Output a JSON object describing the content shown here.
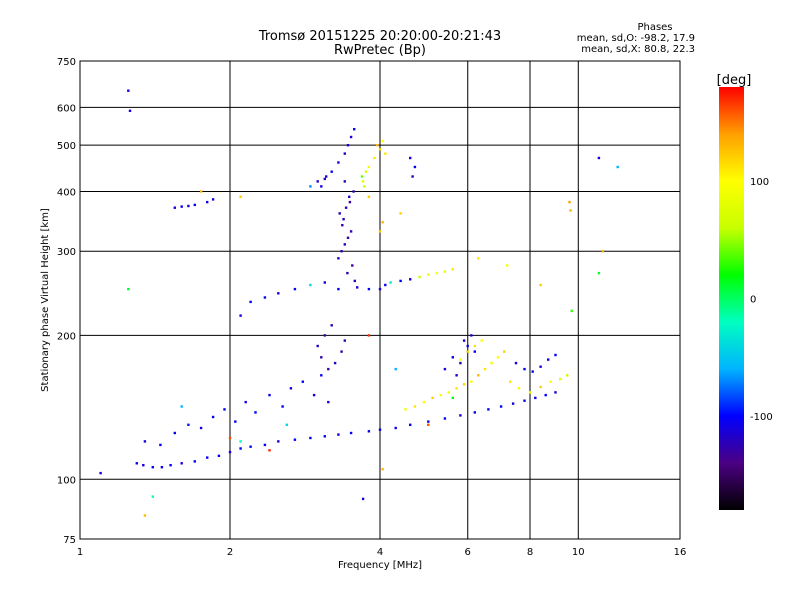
{
  "chart_data": {
    "type": "scatter",
    "title": "Tromsø 20151225 20:20:00-20:21:43",
    "subtitle": "RwPretec (Bp)",
    "xlabel": "Frequency [MHz]",
    "ylabel": "Stationary phase Virtual Height [km]",
    "x_scale": "log",
    "y_scale": "log",
    "xlim": [
      1,
      16
    ],
    "ylim": [
      75,
      750
    ],
    "x_ticks": [
      "1",
      "2",
      "4",
      "6",
      "8",
      "10",
      "16"
    ],
    "x_tick_values": [
      1,
      2,
      4,
      6,
      8,
      10,
      16
    ],
    "y_ticks": [
      "75",
      "100",
      "200",
      "300",
      "400",
      "500",
      "600",
      "750"
    ],
    "y_tick_values": [
      75,
      100,
      200,
      300,
      400,
      500,
      600,
      750
    ],
    "grid": true,
    "stats": {
      "header": "Phases",
      "o_line": "mean, sd,O: -98.2, 17.9",
      "x_line": "mean, sd,X: 80.8, 22.3"
    },
    "colorbar": {
      "label": "[deg]",
      "min": -180,
      "max": 180,
      "ticks": [
        "100",
        "0",
        "-100"
      ],
      "tick_values": [
        100,
        0,
        -100
      ],
      "colors": [
        "#000000",
        "#4b0082",
        "#0000ff",
        "#00b4ff",
        "#00ffc0",
        "#00ff00",
        "#c8ff00",
        "#ffff00",
        "#ffa000",
        "#ff0000"
      ]
    },
    "series": [
      {
        "values_note": "",
        "points": [
          [
            1.3,
            108,
            -105
          ],
          [
            1.34,
            107,
            -110
          ],
          [
            1.4,
            106,
            -100
          ],
          [
            1.46,
            106,
            -105
          ],
          [
            1.52,
            107,
            -100
          ],
          [
            1.6,
            108,
            -110
          ],
          [
            1.7,
            109,
            -100
          ],
          [
            1.8,
            111,
            -105
          ],
          [
            1.9,
            112,
            -100
          ],
          [
            2.0,
            114,
            -110
          ],
          [
            2.1,
            116,
            -100
          ],
          [
            2.2,
            117,
            -105
          ],
          [
            2.35,
            118,
            -100
          ],
          [
            2.5,
            120,
            -110
          ],
          [
            2.7,
            121,
            -100
          ],
          [
            2.9,
            122,
            -105
          ],
          [
            3.1,
            123,
            -100
          ],
          [
            3.3,
            124,
            -110
          ],
          [
            3.5,
            125,
            -100
          ],
          [
            3.8,
            126,
            -105
          ],
          [
            4.0,
            127,
            -100
          ],
          [
            4.3,
            128,
            -110
          ],
          [
            4.6,
            130,
            -100
          ],
          [
            5.0,
            132,
            -105
          ],
          [
            5.4,
            134,
            -100
          ],
          [
            5.8,
            136,
            -110
          ],
          [
            6.2,
            138,
            -100
          ],
          [
            6.6,
            140,
            -105
          ],
          [
            7.0,
            142,
            -100
          ],
          [
            7.4,
            144,
            -110
          ],
          [
            7.8,
            146,
            -100
          ],
          [
            8.2,
            148,
            -105
          ],
          [
            8.6,
            150,
            -100
          ],
          [
            9.0,
            152,
            -110
          ],
          [
            1.35,
            120,
            -110
          ],
          [
            1.45,
            118,
            -100
          ],
          [
            1.55,
            125,
            -105
          ],
          [
            1.65,
            130,
            -95
          ],
          [
            1.75,
            128,
            -110
          ],
          [
            1.85,
            135,
            -100
          ],
          [
            1.95,
            140,
            -105
          ],
          [
            2.05,
            132,
            -100
          ],
          [
            2.15,
            145,
            -110
          ],
          [
            2.25,
            138,
            -100
          ],
          [
            2.4,
            150,
            -105
          ],
          [
            2.55,
            142,
            -100
          ],
          [
            2.65,
            155,
            -110
          ],
          [
            2.8,
            160,
            -100
          ],
          [
            2.95,
            150,
            -105
          ],
          [
            3.05,
            165,
            -100
          ],
          [
            3.15,
            145,
            -110
          ],
          [
            1.6,
            142,
            -60
          ],
          [
            2.6,
            130,
            -40
          ],
          [
            2.0,
            122,
            160
          ],
          [
            3.0,
            190,
            -120
          ],
          [
            3.1,
            200,
            -130
          ],
          [
            3.2,
            210,
            -125
          ],
          [
            3.25,
            175,
            -120
          ],
          [
            3.35,
            185,
            -130
          ],
          [
            3.4,
            195,
            -125
          ],
          [
            3.05,
            180,
            -125
          ],
          [
            3.15,
            170,
            -130
          ],
          [
            3.3,
            290,
            -120
          ],
          [
            3.35,
            300,
            -125
          ],
          [
            3.4,
            310,
            -120
          ],
          [
            3.45,
            320,
            -130
          ],
          [
            3.5,
            330,
            -125
          ],
          [
            3.38,
            350,
            -120
          ],
          [
            3.42,
            370,
            -125
          ],
          [
            3.47,
            390,
            -120
          ],
          [
            3.52,
            280,
            -130
          ],
          [
            3.44,
            270,
            -125
          ],
          [
            3.56,
            260,
            -120
          ],
          [
            3.36,
            340,
            -125
          ],
          [
            3.32,
            360,
            -120
          ],
          [
            3.48,
            380,
            -130
          ],
          [
            3.54,
            400,
            -125
          ],
          [
            3.4,
            420,
            -120
          ],
          [
            3.0,
            420,
            -115
          ],
          [
            3.05,
            410,
            -110
          ],
          [
            3.1,
            425,
            -120
          ],
          [
            3.12,
            430,
            -115
          ],
          [
            3.2,
            440,
            -105
          ],
          [
            3.3,
            460,
            -110
          ],
          [
            3.4,
            480,
            -120
          ],
          [
            3.45,
            500,
            -115
          ],
          [
            3.5,
            520,
            -110
          ],
          [
            3.55,
            540,
            -105
          ],
          [
            3.7,
            420,
            80
          ],
          [
            3.72,
            410,
            60
          ],
          [
            3.68,
            430,
            40
          ],
          [
            3.75,
            440,
            70
          ],
          [
            3.8,
            450,
            90
          ],
          [
            3.9,
            470,
            110
          ],
          [
            4.0,
            490,
            120
          ],
          [
            4.05,
            510,
            100
          ],
          [
            3.95,
            500,
            130
          ],
          [
            4.1,
            480,
            110
          ],
          [
            4.0,
            330,
            120
          ],
          [
            4.05,
            345,
            130
          ],
          [
            4.4,
            360,
            120
          ],
          [
            4.6,
            470,
            -110
          ],
          [
            4.7,
            450,
            -100
          ],
          [
            4.65,
            430,
            -120
          ],
          [
            4.0,
            250,
            -110
          ],
          [
            4.1,
            255,
            -105
          ],
          [
            4.2,
            258,
            -30
          ],
          [
            4.4,
            260,
            -100
          ],
          [
            4.6,
            262,
            -110
          ],
          [
            4.8,
            265,
            60
          ],
          [
            5.0,
            268,
            90
          ],
          [
            5.2,
            270,
            100
          ],
          [
            5.4,
            272,
            80
          ],
          [
            5.6,
            275,
            110
          ],
          [
            2.1,
            220,
            -110
          ],
          [
            2.2,
            235,
            -100
          ],
          [
            2.35,
            240,
            -105
          ],
          [
            2.5,
            245,
            -110
          ],
          [
            2.7,
            250,
            -100
          ],
          [
            2.9,
            255,
            -40
          ],
          [
            3.1,
            258,
            -105
          ],
          [
            3.3,
            250,
            -100
          ],
          [
            3.6,
            252,
            -110
          ],
          [
            3.8,
            250,
            -100
          ],
          [
            1.55,
            370,
            -110
          ],
          [
            1.6,
            372,
            -105
          ],
          [
            1.65,
            373,
            -110
          ],
          [
            1.7,
            375,
            -100
          ],
          [
            1.8,
            380,
            -110
          ],
          [
            1.85,
            385,
            -105
          ],
          [
            1.75,
            400,
            130
          ],
          [
            2.1,
            390,
            120
          ],
          [
            4.5,
            140,
            90
          ],
          [
            4.7,
            142,
            110
          ],
          [
            4.9,
            145,
            100
          ],
          [
            5.1,
            148,
            120
          ],
          [
            5.3,
            150,
            100
          ],
          [
            5.5,
            152,
            90
          ],
          [
            5.7,
            155,
            110
          ],
          [
            5.9,
            158,
            120
          ],
          [
            6.1,
            160,
            100
          ],
          [
            6.3,
            165,
            130
          ],
          [
            6.5,
            170,
            110
          ],
          [
            6.7,
            175,
            90
          ],
          [
            6.9,
            180,
            100
          ],
          [
            7.1,
            185,
            120
          ],
          [
            6.2,
            190,
            110
          ],
          [
            6.4,
            195,
            100
          ],
          [
            6.0,
            185,
            120
          ],
          [
            5.8,
            178,
            100
          ],
          [
            7.3,
            160,
            110
          ],
          [
            7.6,
            155,
            100
          ],
          [
            8.0,
            152,
            90
          ],
          [
            8.4,
            156,
            120
          ],
          [
            8.8,
            160,
            100
          ],
          [
            9.2,
            162,
            80
          ],
          [
            9.5,
            165,
            60
          ],
          [
            5.4,
            170,
            -110
          ],
          [
            5.6,
            180,
            -105
          ],
          [
            5.8,
            175,
            -120
          ],
          [
            6.0,
            190,
            -110
          ],
          [
            6.2,
            185,
            -100
          ],
          [
            5.7,
            165,
            -115
          ],
          [
            5.9,
            195,
            -110
          ],
          [
            6.1,
            200,
            -120
          ],
          [
            7.5,
            175,
            -110
          ],
          [
            7.8,
            170,
            -105
          ],
          [
            8.1,
            168,
            -100
          ],
          [
            8.4,
            172,
            -110
          ],
          [
            8.7,
            178,
            -105
          ],
          [
            9.0,
            182,
            -100
          ],
          [
            6.3,
            290,
            110
          ],
          [
            7.2,
            280,
            90
          ],
          [
            8.4,
            255,
            120
          ],
          [
            9.6,
            380,
            140
          ],
          [
            9.65,
            365,
            130
          ],
          [
            9.7,
            225,
            30
          ],
          [
            11.0,
            470,
            -110
          ],
          [
            12.0,
            450,
            -60
          ],
          [
            11.0,
            270,
            10
          ],
          [
            11.2,
            300,
            130
          ],
          [
            1.25,
            650,
            -110
          ],
          [
            1.26,
            590,
            -110
          ],
          [
            1.1,
            103,
            -110
          ],
          [
            1.4,
            92,
            -20
          ],
          [
            1.35,
            84,
            130
          ],
          [
            1.25,
            250,
            10
          ],
          [
            3.7,
            91,
            -110
          ],
          [
            4.05,
            105,
            130
          ],
          [
            3.8,
            390,
            120
          ],
          [
            2.9,
            410,
            -70
          ],
          [
            2.1,
            120,
            -20
          ],
          [
            2.4,
            115,
            170
          ],
          [
            5.0,
            130,
            160
          ],
          [
            4.3,
            170,
            -60
          ],
          [
            3.8,
            200,
            170
          ],
          [
            5.6,
            148,
            20
          ]
        ]
      }
    ]
  }
}
